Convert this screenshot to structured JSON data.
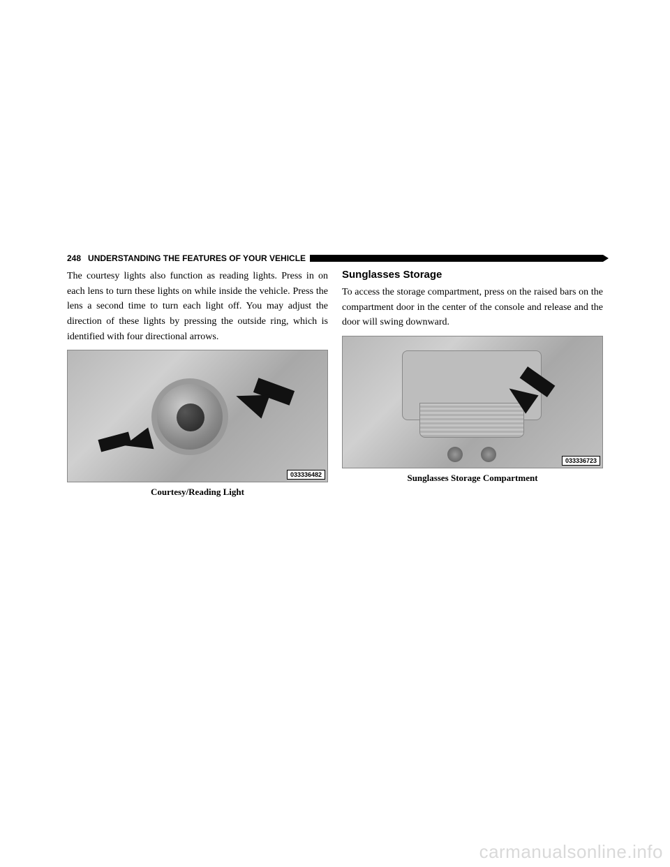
{
  "header": {
    "page_number": "248",
    "title": "UNDERSTANDING THE FEATURES OF YOUR VEHICLE"
  },
  "left_column": {
    "paragraph": "The courtesy lights also function as reading lights. Press in on each lens to turn these lights on while inside the vehicle. Press the lens a second time to turn each light off. You may adjust the direction of these lights by pressing the outside ring, which is identified with four directional arrows.",
    "figure": {
      "image_id": "033336482",
      "caption": "Courtesy/Reading Light"
    }
  },
  "right_column": {
    "heading": "Sunglasses Storage",
    "paragraph": "To access the storage compartment, press on the raised bars on the compartment door in the center of the console and release and the door will swing downward.",
    "figure": {
      "image_id": "033336723",
      "caption": "Sunglasses Storage Compartment"
    }
  },
  "watermark": "carmanualsonline.info"
}
